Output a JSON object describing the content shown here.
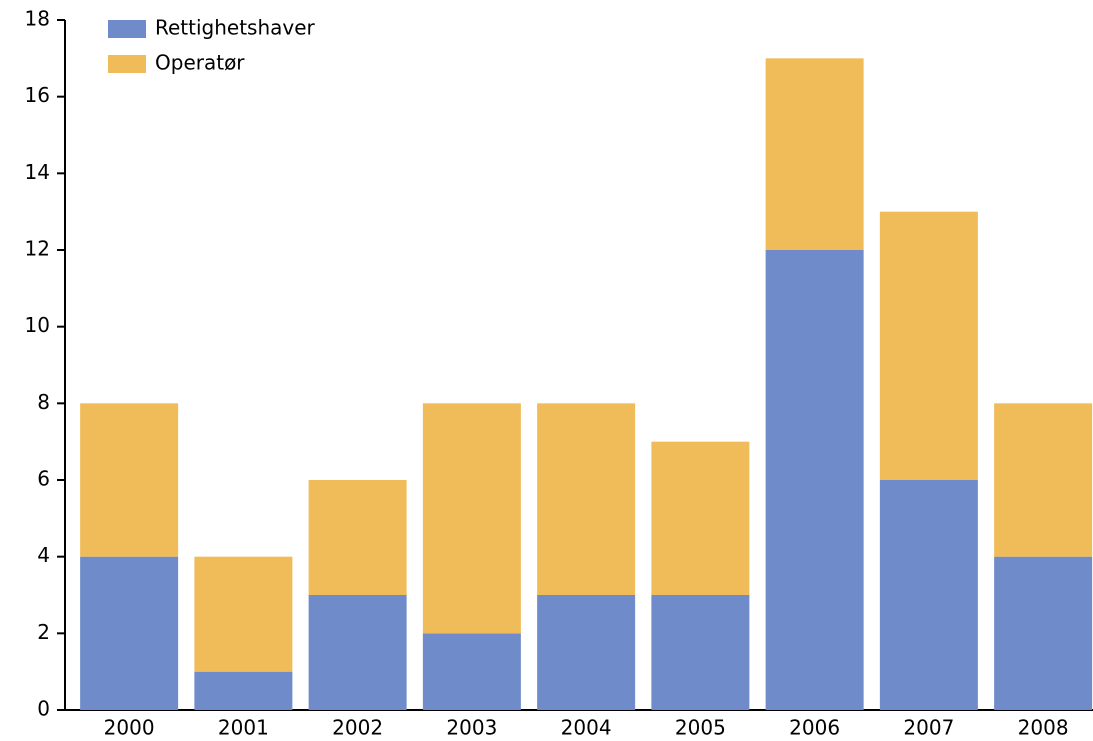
{
  "chart_data": {
    "type": "stacked_bar",
    "categories": [
      "2000",
      "2001",
      "2002",
      "2003",
      "2004",
      "2005",
      "2006",
      "2007",
      "2008"
    ],
    "series": [
      {
        "name": "Rettighetshaver",
        "color": "#6f8bca",
        "values": [
          4,
          1,
          3,
          2,
          3,
          3,
          12,
          6,
          4
        ]
      },
      {
        "name": "Operatør",
        "color": "#f0bc5a",
        "values": [
          4,
          3,
          3,
          6,
          5,
          4,
          5,
          7,
          4
        ]
      }
    ],
    "ylim": [
      0,
      18
    ],
    "yticks": [
      0,
      2,
      4,
      6,
      8,
      10,
      12,
      14,
      16,
      18
    ],
    "grid": false,
    "legend": "top-left"
  }
}
